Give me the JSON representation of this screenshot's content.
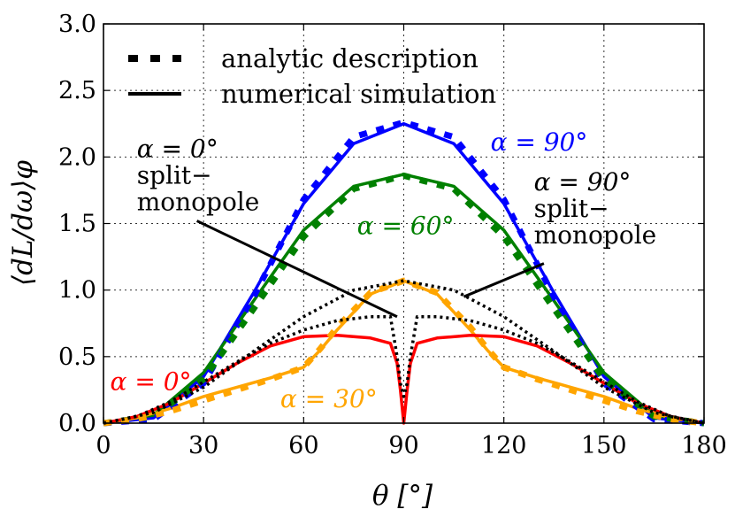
{
  "chart_data": {
    "type": "line",
    "xlabel": "θ [°]",
    "ylabel": "⟨dL/dω⟩φ",
    "xlim": [
      0,
      180
    ],
    "ylim": [
      0,
      3.0
    ],
    "xticks": [
      0,
      30,
      60,
      90,
      120,
      150,
      180
    ],
    "yticks": [
      0.0,
      0.5,
      1.0,
      1.5,
      2.0,
      2.5,
      3.0
    ],
    "xtick_labels": [
      "0",
      "30",
      "60",
      "90",
      "120",
      "150",
      "180"
    ],
    "ytick_labels": [
      "0.0",
      "0.5",
      "1.0",
      "1.5",
      "2.0",
      "2.5",
      "3.0"
    ],
    "grid": true,
    "legend": {
      "position": "top-left",
      "entries": [
        {
          "label": "analytic description",
          "style": "dotted"
        },
        {
          "label": "numerical simulation",
          "style": "solid"
        }
      ]
    },
    "series": [
      {
        "name": "α = 90°",
        "model": "numerical",
        "color": "#0000ff",
        "x": [
          0,
          15,
          30,
          45,
          60,
          75,
          90,
          105,
          120,
          135,
          150,
          165,
          180
        ],
        "y": [
          0,
          0.04,
          0.35,
          0.98,
          1.65,
          2.1,
          2.25,
          2.1,
          1.65,
          0.98,
          0.35,
          0.04,
          0
        ]
      },
      {
        "name": "α = 90°",
        "model": "analytic",
        "color": "#0000ff",
        "x": [
          0,
          15,
          30,
          45,
          60,
          75,
          90,
          105,
          120,
          135,
          150,
          165,
          180
        ],
        "y": [
          0,
          0.03,
          0.3,
          0.95,
          1.68,
          2.15,
          2.26,
          2.15,
          1.68,
          0.95,
          0.3,
          0.03,
          0
        ]
      },
      {
        "name": "α = 60°",
        "model": "numerical",
        "color": "#008000",
        "x": [
          0,
          15,
          30,
          45,
          60,
          75,
          90,
          105,
          120,
          135,
          150,
          165,
          180
        ],
        "y": [
          0,
          0.06,
          0.38,
          0.92,
          1.45,
          1.78,
          1.87,
          1.78,
          1.45,
          0.92,
          0.38,
          0.06,
          0
        ]
      },
      {
        "name": "α = 60°",
        "model": "analytic",
        "color": "#008000",
        "x": [
          0,
          15,
          30,
          45,
          60,
          75,
          90,
          105,
          120,
          135,
          150,
          165,
          180
        ],
        "y": [
          0,
          0.05,
          0.33,
          0.86,
          1.4,
          1.76,
          1.86,
          1.76,
          1.4,
          0.86,
          0.33,
          0.05,
          0
        ]
      },
      {
        "name": "α = 30°",
        "model": "numerical",
        "color": "#ffa500",
        "x": [
          0,
          10,
          20,
          30,
          40,
          50,
          60,
          65,
          70,
          80,
          90,
          100,
          110,
          115,
          120,
          130,
          140,
          150,
          160,
          170,
          180
        ],
        "y": [
          0,
          0.04,
          0.11,
          0.2,
          0.27,
          0.34,
          0.42,
          0.55,
          0.7,
          0.97,
          1.07,
          0.97,
          0.7,
          0.55,
          0.42,
          0.34,
          0.27,
          0.2,
          0.11,
          0.04,
          0
        ]
      },
      {
        "name": "α = 30°",
        "model": "analytic",
        "color": "#ffa500",
        "x": [
          0,
          10,
          20,
          30,
          40,
          50,
          60,
          65,
          70,
          80,
          90,
          100,
          110,
          115,
          120,
          130,
          140,
          150,
          160,
          170,
          180
        ],
        "y": [
          0,
          0.03,
          0.09,
          0.17,
          0.25,
          0.33,
          0.42,
          0.56,
          0.72,
          0.98,
          1.07,
          0.98,
          0.72,
          0.56,
          0.42,
          0.33,
          0.25,
          0.17,
          0.09,
          0.03,
          0
        ]
      },
      {
        "name": "α = 0°",
        "model": "numerical",
        "color": "#ff0000",
        "x": [
          0,
          10,
          20,
          30,
          40,
          50,
          60,
          70,
          80,
          86,
          88,
          89,
          90,
          91,
          92,
          94,
          100,
          110,
          120,
          130,
          140,
          150,
          160,
          170,
          180
        ],
        "y": [
          0,
          0.05,
          0.15,
          0.3,
          0.45,
          0.58,
          0.65,
          0.66,
          0.64,
          0.6,
          0.45,
          0.25,
          0.0,
          0.25,
          0.45,
          0.6,
          0.64,
          0.66,
          0.65,
          0.58,
          0.45,
          0.3,
          0.15,
          0.05,
          0
        ]
      },
      {
        "name": "α = 0° split-monopole",
        "model": "analytic",
        "color": "#000000",
        "x": [
          0,
          10,
          20,
          30,
          40,
          50,
          60,
          70,
          80,
          86,
          88,
          89,
          90,
          91,
          92,
          94,
          100,
          110,
          120,
          130,
          140,
          150,
          160,
          170,
          180
        ],
        "y": [
          0,
          0.05,
          0.16,
          0.31,
          0.46,
          0.6,
          0.7,
          0.77,
          0.8,
          0.8,
          0.5,
          0.3,
          0.2,
          0.3,
          0.5,
          0.8,
          0.8,
          0.77,
          0.7,
          0.6,
          0.46,
          0.31,
          0.16,
          0.05,
          0
        ]
      },
      {
        "name": "α = 90° split-monopole",
        "model": "analytic",
        "color": "#000000",
        "x": [
          0,
          15,
          30,
          45,
          60,
          75,
          90,
          105,
          120,
          135,
          150,
          165,
          180
        ],
        "y": [
          0,
          0.08,
          0.27,
          0.54,
          0.8,
          1.0,
          1.07,
          1.0,
          0.8,
          0.54,
          0.27,
          0.08,
          0
        ]
      }
    ],
    "annotations": [
      {
        "text": "α = 90°",
        "color": "#0000ff",
        "kind": "curve-label",
        "at": [
          116,
          2.05
        ]
      },
      {
        "text": "α = 60°",
        "color": "#008000",
        "kind": "curve-label",
        "at": [
          76,
          1.42
        ]
      },
      {
        "text": "α = 30°",
        "color": "#ffa500",
        "kind": "curve-label",
        "at": [
          53,
          0.12
        ]
      },
      {
        "text": "α = 0°",
        "color": "#ff0000",
        "kind": "curve-label",
        "at": [
          2,
          0.25
        ]
      },
      {
        "lines": [
          "α = 0°",
          "split−",
          "monopole"
        ],
        "color": "#000000",
        "kind": "split-monopole-note",
        "at": [
          10,
          2.0
        ],
        "arrow_to": [
          88,
          0.8
        ]
      },
      {
        "lines": [
          "α = 90°",
          "split−",
          "monopole"
        ],
        "color": "#000000",
        "kind": "split-monopole-note",
        "at": [
          129,
          1.75
        ],
        "arrow_to": [
          108,
          0.95
        ]
      }
    ]
  }
}
